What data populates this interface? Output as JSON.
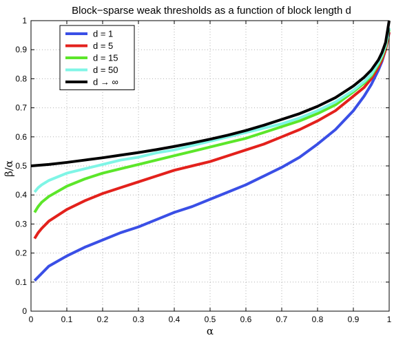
{
  "chart_data": {
    "type": "line",
    "title": "Block−sparse weak thresholds as a function of block length d",
    "xlabel": "α",
    "ylabel": "β/α",
    "xlim": [
      0,
      1
    ],
    "ylim": [
      0,
      1
    ],
    "xticks": [
      "0",
      "0.1",
      "0.2",
      "0.3",
      "0.4",
      "0.5",
      "0.6",
      "0.7",
      "0.8",
      "0.9",
      "1"
    ],
    "yticks": [
      "0",
      "0.1",
      "0.2",
      "0.3",
      "0.4",
      "0.5",
      "0.6",
      "0.7",
      "0.8",
      "0.9",
      "1"
    ],
    "grid": true,
    "legend_position": "top-left",
    "series": [
      {
        "name": "d = 1",
        "color": "#3a4fe6",
        "x": [
          0.01,
          0.03,
          0.05,
          0.1,
          0.15,
          0.2,
          0.25,
          0.3,
          0.35,
          0.4,
          0.45,
          0.5,
          0.55,
          0.6,
          0.65,
          0.7,
          0.75,
          0.8,
          0.85,
          0.9,
          0.93,
          0.95,
          0.97,
          0.98,
          0.99,
          1.0
        ],
        "y": [
          0.105,
          0.13,
          0.155,
          0.19,
          0.22,
          0.245,
          0.27,
          0.29,
          0.315,
          0.34,
          0.36,
          0.385,
          0.41,
          0.435,
          0.465,
          0.495,
          0.53,
          0.575,
          0.625,
          0.69,
          0.74,
          0.78,
          0.83,
          0.86,
          0.9,
          0.96
        ]
      },
      {
        "name": "d = 5",
        "color": "#e3211c",
        "x": [
          0.01,
          0.02,
          0.03,
          0.05,
          0.1,
          0.15,
          0.2,
          0.25,
          0.3,
          0.35,
          0.4,
          0.45,
          0.5,
          0.55,
          0.6,
          0.65,
          0.7,
          0.75,
          0.8,
          0.85,
          0.9,
          0.93,
          0.95,
          0.97,
          0.98,
          0.99,
          1.0
        ],
        "y": [
          0.25,
          0.27,
          0.285,
          0.31,
          0.35,
          0.38,
          0.405,
          0.425,
          0.445,
          0.465,
          0.485,
          0.5,
          0.515,
          0.535,
          0.555,
          0.575,
          0.6,
          0.625,
          0.655,
          0.69,
          0.74,
          0.77,
          0.8,
          0.84,
          0.865,
          0.9,
          0.96
        ]
      },
      {
        "name": "d = 15",
        "color": "#5ce62a",
        "x": [
          0.01,
          0.02,
          0.03,
          0.05,
          0.1,
          0.15,
          0.2,
          0.25,
          0.3,
          0.35,
          0.4,
          0.45,
          0.5,
          0.55,
          0.6,
          0.65,
          0.7,
          0.75,
          0.8,
          0.85,
          0.9,
          0.93,
          0.95,
          0.97,
          0.98,
          0.99,
          1.0
        ],
        "y": [
          0.34,
          0.36,
          0.375,
          0.395,
          0.43,
          0.455,
          0.475,
          0.49,
          0.505,
          0.52,
          0.535,
          0.55,
          0.565,
          0.58,
          0.595,
          0.615,
          0.635,
          0.655,
          0.68,
          0.71,
          0.755,
          0.785,
          0.81,
          0.85,
          0.875,
          0.91,
          0.97
        ]
      },
      {
        "name": "d = 50",
        "color": "#7ff5e6",
        "x": [
          0.01,
          0.02,
          0.03,
          0.05,
          0.1,
          0.15,
          0.2,
          0.25,
          0.3,
          0.35,
          0.4,
          0.45,
          0.5,
          0.55,
          0.6,
          0.65,
          0.7,
          0.75,
          0.8,
          0.85,
          0.9,
          0.93,
          0.95,
          0.97,
          0.98,
          0.99,
          1.0
        ],
        "y": [
          0.41,
          0.425,
          0.435,
          0.45,
          0.475,
          0.49,
          0.505,
          0.52,
          0.53,
          0.545,
          0.555,
          0.57,
          0.585,
          0.6,
          0.615,
          0.63,
          0.645,
          0.665,
          0.69,
          0.72,
          0.76,
          0.79,
          0.815,
          0.855,
          0.88,
          0.915,
          0.975
        ]
      },
      {
        "name": "d → ∞",
        "color": "#000000",
        "x": [
          0.0,
          0.05,
          0.1,
          0.15,
          0.2,
          0.25,
          0.3,
          0.35,
          0.4,
          0.45,
          0.5,
          0.55,
          0.6,
          0.65,
          0.7,
          0.75,
          0.8,
          0.85,
          0.9,
          0.93,
          0.95,
          0.97,
          0.98,
          0.99,
          1.0
        ],
        "y": [
          0.5,
          0.505,
          0.512,
          0.52,
          0.528,
          0.537,
          0.546,
          0.556,
          0.567,
          0.579,
          0.592,
          0.606,
          0.622,
          0.64,
          0.66,
          0.68,
          0.705,
          0.735,
          0.775,
          0.805,
          0.83,
          0.865,
          0.89,
          0.925,
          1.0
        ]
      }
    ]
  }
}
